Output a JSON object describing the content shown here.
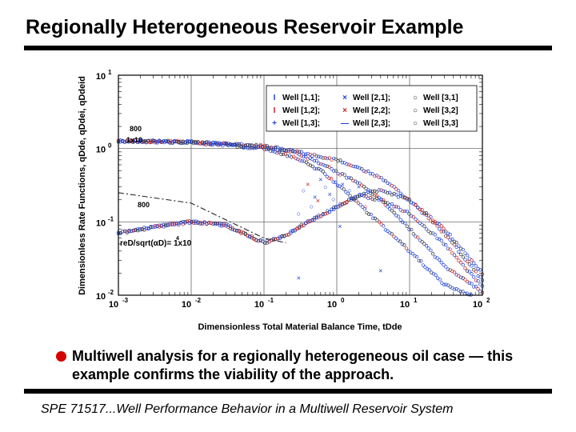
{
  "header": {
    "title": "Regionally Heterogeneous Reservoir Example"
  },
  "bullet": {
    "text": "Multiwell analysis for a regionally heterogeneous oil case — this example confirms the viability of the approach."
  },
  "footer": {
    "text": "SPE 71517...Well Performance Behavior in a Multiwell Reservoir System"
  },
  "chart_data": {
    "type": "scatter",
    "xscale": "log",
    "yscale": "log",
    "xlim": [
      0.001,
      100
    ],
    "ylim": [
      0.01,
      10
    ],
    "xticks": [
      {
        "base": "10",
        "exp": "-3"
      },
      {
        "base": "10",
        "exp": "-2"
      },
      {
        "base": "10",
        "exp": "-1"
      },
      {
        "base": "10",
        "exp": "0"
      },
      {
        "base": "10",
        "exp": "1"
      },
      {
        "base": "10",
        "exp": "2"
      }
    ],
    "yticks": [
      {
        "base": "10",
        "exp": "-2"
      },
      {
        "base": "10",
        "exp": "-1"
      },
      {
        "base": "10",
        "exp": "0"
      },
      {
        "base": "10",
        "exp": "1"
      }
    ],
    "xlabel": "Dimensionless Total Material Balance Time, tDde",
    "ylabel": "Dimensionless Rate Functions, qDde, qDdei, qDdeid",
    "grid": true,
    "legend_position": "top-right",
    "legend": [
      {
        "symbol": "I",
        "label": "Well [1,1];"
      },
      {
        "symbol": "×",
        "label": "Well [2,1];"
      },
      {
        "symbol": "○",
        "label": "Well [3,1]"
      },
      {
        "symbol": "I",
        "label": "Well [1,2];"
      },
      {
        "symbol": "×",
        "label": "Well [2,2];"
      },
      {
        "symbol": "○",
        "label": "Well [3,2]"
      },
      {
        "symbol": "+",
        "label": "Well [1,3];"
      },
      {
        "symbol": "—",
        "label": "Well [2,3];"
      },
      {
        "symbol": "○",
        "label": "Well [3,3]"
      }
    ],
    "annotations": [
      "800",
      "1x10",
      "800",
      "reD/sqrt(αD)= 1x10",
      "4"
    ],
    "series": [
      {
        "values": [
          [
            0.001,
            1.27
          ],
          [
            0.01,
            1.22
          ],
          [
            0.1,
            1.05
          ],
          [
            0.3,
            0.85
          ],
          [
            0.6,
            0.62
          ],
          [
            1,
            0.48
          ],
          [
            2,
            0.34
          ],
          [
            4,
            0.2
          ],
          [
            10,
            0.08
          ],
          [
            30,
            0.025
          ],
          [
            100,
            0.011
          ]
        ]
      },
      {
        "values": [
          [
            0.001,
            1.27
          ],
          [
            0.01,
            1.22
          ],
          [
            0.1,
            1.08
          ],
          [
            0.3,
            0.9
          ],
          [
            1,
            0.7
          ],
          [
            2,
            0.55
          ],
          [
            4,
            0.4
          ],
          [
            10,
            0.2
          ],
          [
            30,
            0.07
          ],
          [
            100,
            0.016
          ]
        ]
      },
      {
        "values": [
          [
            0.001,
            1.27
          ],
          [
            0.01,
            1.22
          ],
          [
            0.1,
            1.0
          ],
          [
            0.3,
            0.72
          ],
          [
            0.6,
            0.5
          ],
          [
            1,
            0.33
          ],
          [
            3,
            0.12
          ],
          [
            10,
            0.04
          ],
          [
            30,
            0.014
          ],
          [
            70,
            0.01
          ]
        ]
      },
      {
        "values": [
          [
            0.001,
            0.07
          ],
          [
            0.003,
            0.085
          ],
          [
            0.01,
            0.1
          ],
          [
            0.03,
            0.09
          ],
          [
            0.06,
            0.065
          ],
          [
            0.1,
            0.052
          ],
          [
            0.2,
            0.065
          ],
          [
            0.3,
            0.085
          ],
          [
            1,
            0.16
          ],
          [
            2,
            0.23
          ],
          [
            4,
            0.2
          ],
          [
            10,
            0.13
          ],
          [
            30,
            0.05
          ],
          [
            100,
            0.013
          ]
        ]
      },
      {
        "values": [
          [
            0.001,
            0.07
          ],
          [
            0.003,
            0.085
          ],
          [
            0.01,
            0.1
          ],
          [
            0.03,
            0.09
          ],
          [
            0.06,
            0.065
          ],
          [
            0.1,
            0.052
          ],
          [
            0.2,
            0.065
          ],
          [
            0.3,
            0.085
          ],
          [
            1,
            0.16
          ],
          [
            2,
            0.23
          ],
          [
            4,
            0.27
          ],
          [
            10,
            0.2
          ],
          [
            30,
            0.08
          ],
          [
            100,
            0.02
          ]
        ]
      },
      {
        "values": [
          [
            0.001,
            0.25
          ],
          [
            0.01,
            0.18
          ],
          [
            0.1,
            0.06
          ],
          [
            0.2,
            0.052
          ]
        ]
      }
    ]
  }
}
